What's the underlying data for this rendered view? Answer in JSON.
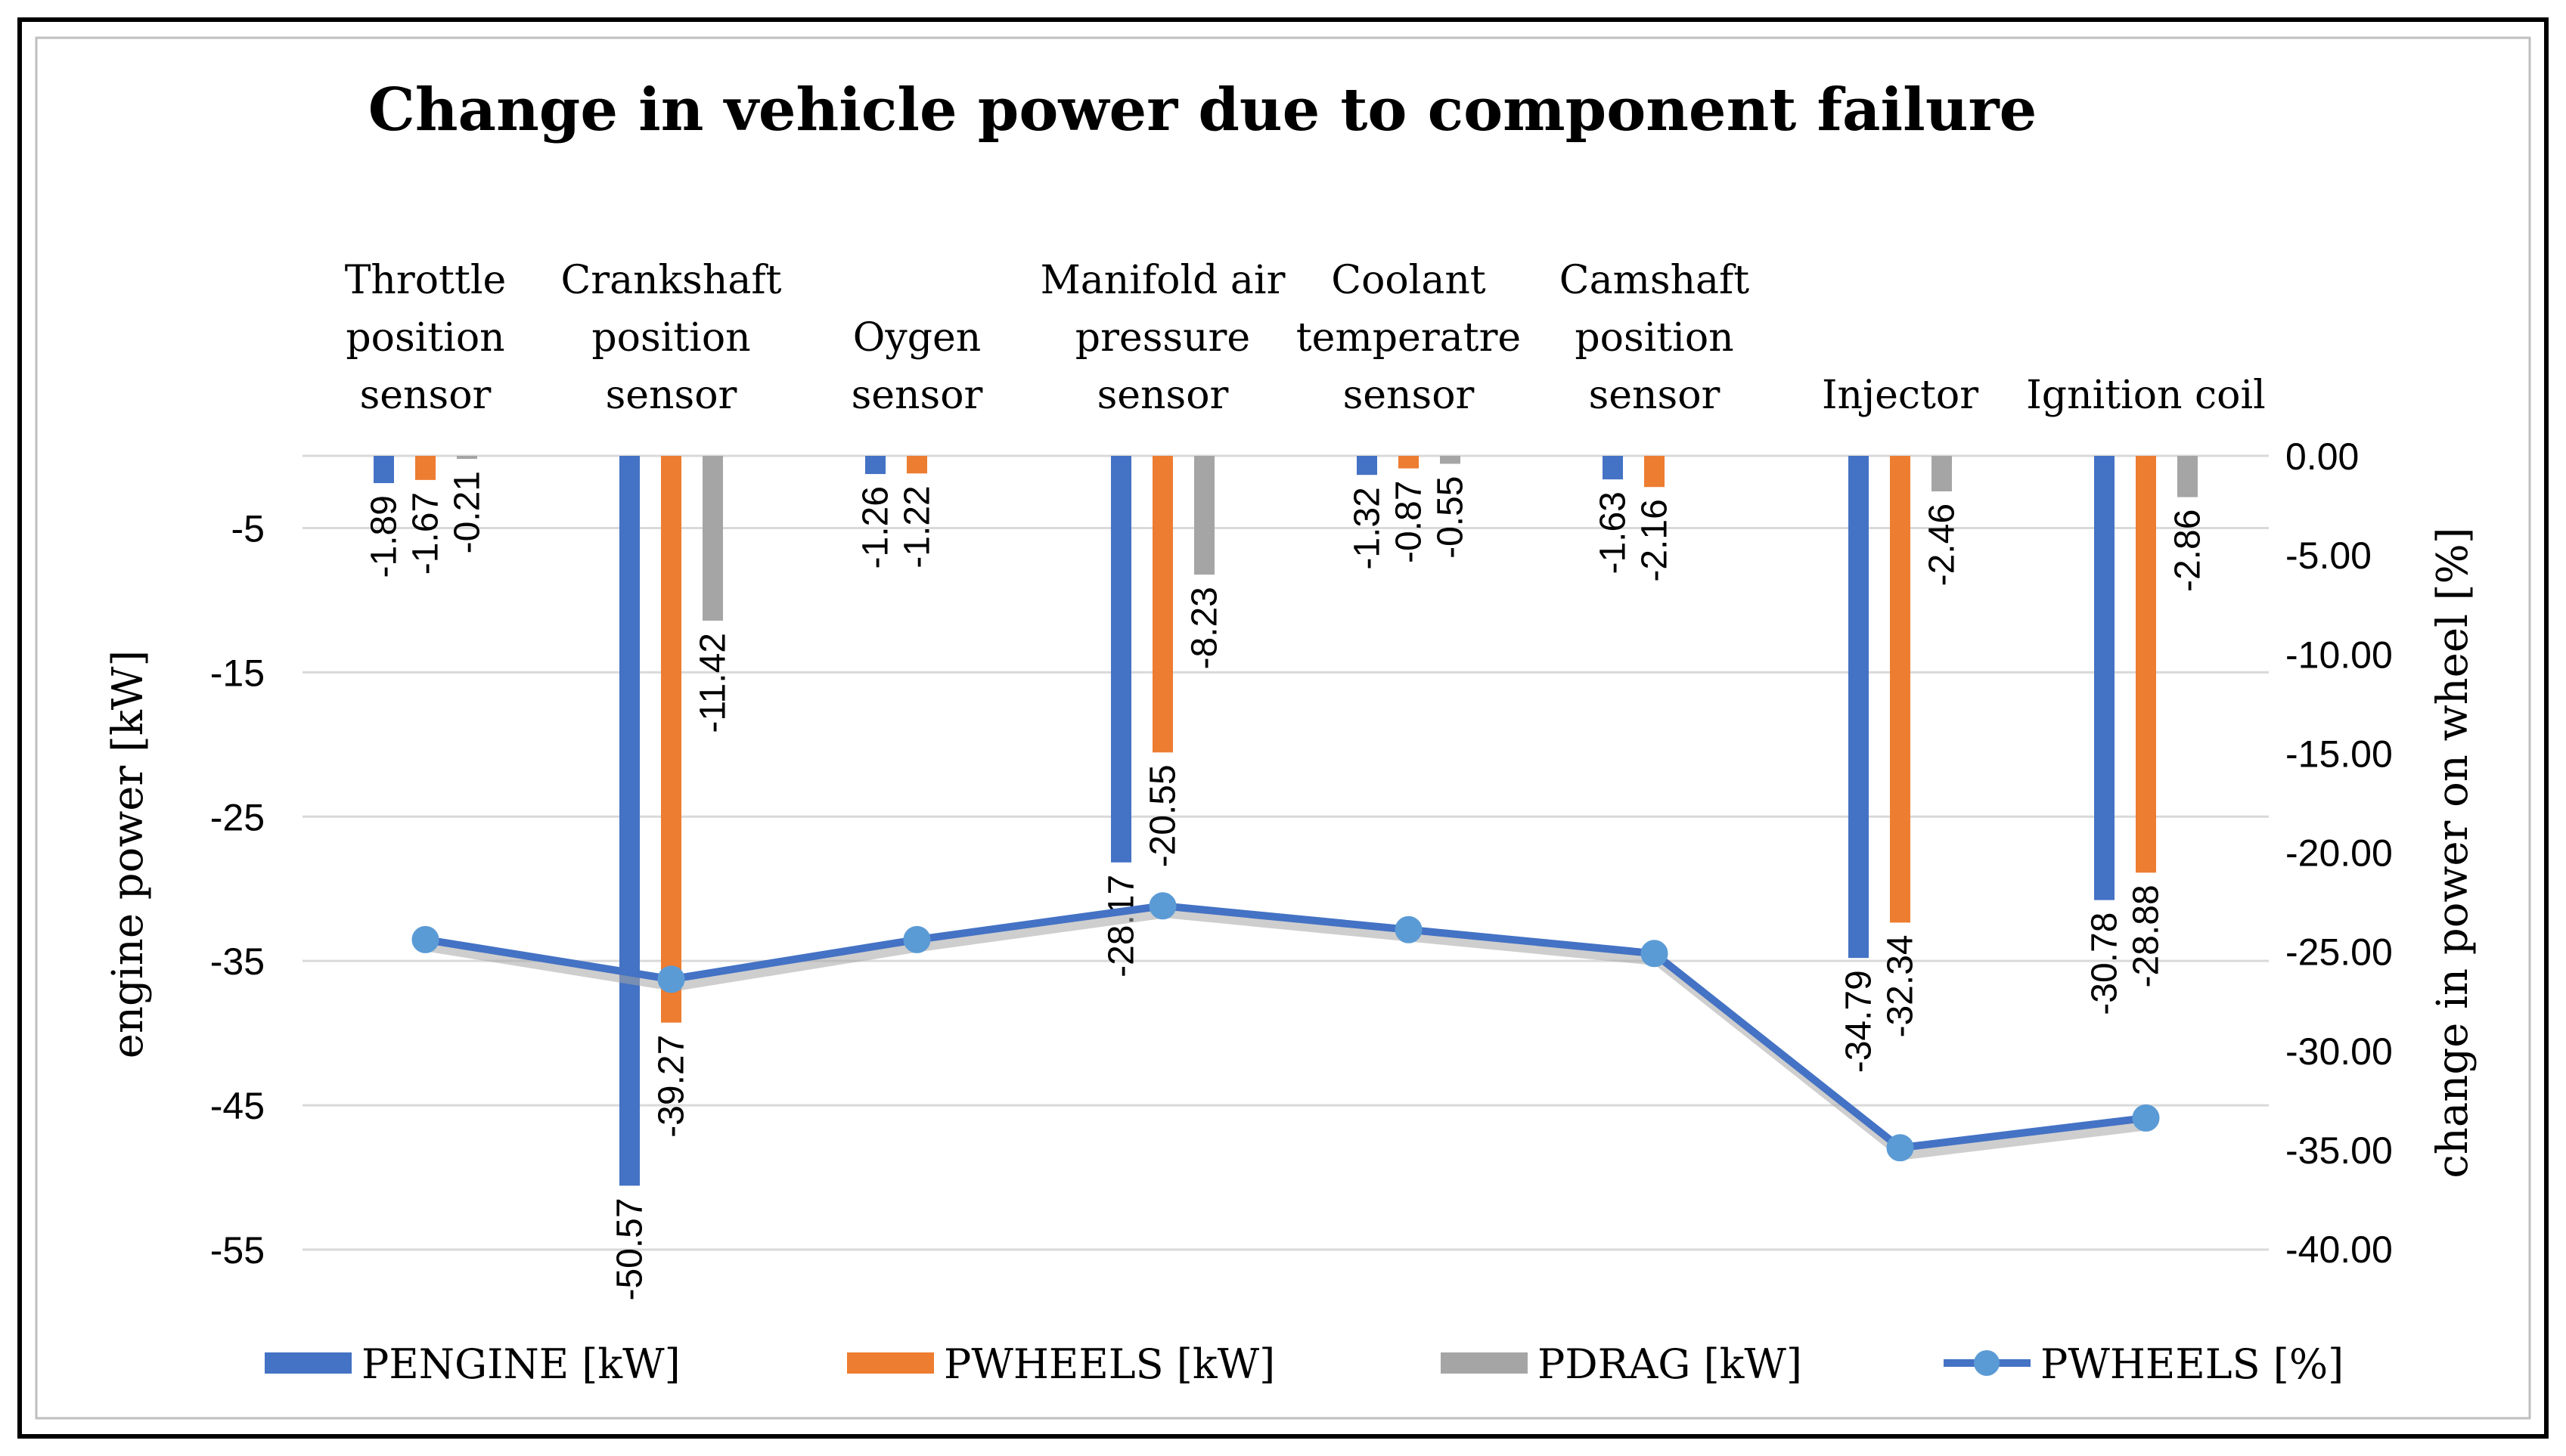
{
  "chart_data": {
    "type": "bar",
    "title": "Change in vehicle power due to component failure",
    "categories": [
      [
        "Throttle",
        "position",
        "sensor"
      ],
      [
        "Crankshaft",
        "position",
        "sensor"
      ],
      [
        "Oygen",
        "sensor"
      ],
      [
        "Manifold air",
        "pressure",
        "sensor"
      ],
      [
        "Coolant",
        "temperatre",
        "sensor"
      ],
      [
        "Camshaft",
        "position",
        "sensor"
      ],
      [
        "Injector"
      ],
      [
        "Ignition coil"
      ]
    ],
    "ylabel": "engine power [kW]",
    "y2label": "change in power on wheel [%]",
    "ylim": [
      -55,
      0
    ],
    "yticks": [
      -5,
      -15,
      -25,
      -35,
      -45,
      -55
    ],
    "y2lim": [
      -40,
      0
    ],
    "y2ticks": [
      "0.00",
      "-5.00",
      "-10.00",
      "-15.00",
      "-20.00",
      "-25.00",
      "-30.00",
      "-35.00",
      "-40.00"
    ],
    "series": [
      {
        "name": "PENGINE [kW]",
        "color": "#4472C4",
        "type": "bar",
        "values": [
          -1.89,
          null,
          -1.26,
          -28.17,
          -1.32,
          -1.63,
          -34.79,
          -30.78
        ],
        "labels": [
          "-1.89",
          "-50.57",
          "-1.26",
          "-28.17",
          "-1.32",
          "-1.63",
          "-34.79",
          "-30.78"
        ],
        "bar_values": [
          -1.89,
          -50.57,
          -1.26,
          -28.17,
          -1.32,
          -1.63,
          -34.79,
          -30.78
        ]
      },
      {
        "name": "PWHEELS [kW]",
        "color": "#ED7D31",
        "type": "bar",
        "bar_values": [
          -1.67,
          -39.27,
          -1.22,
          -20.55,
          -0.87,
          -2.16,
          -32.34,
          -28.88
        ],
        "labels": [
          "-1.67",
          "-39.27",
          "-1.22",
          "-20.55",
          "-0.87",
          "-2.16",
          "-32.34",
          "-28.88"
        ]
      },
      {
        "name": "PDRAG [kW]",
        "color": "#A5A5A5",
        "type": "bar",
        "bar_values": [
          -0.21,
          -11.42,
          0,
          -8.23,
          -0.55,
          0,
          -2.46,
          -2.86
        ],
        "labels": [
          "-0.21",
          "-11.42",
          "",
          "-8.23",
          "-0.55",
          "",
          "-2.46",
          "-2.86"
        ]
      },
      {
        "name": "PWHEELS [%]",
        "color": "#4472C4",
        "type": "line",
        "axis": "secondary",
        "values": [
          -24.4,
          -26.4,
          -24.4,
          -22.7,
          -23.9,
          -25.1,
          -34.9,
          -33.4
        ]
      }
    ],
    "legend": [
      "PENGINE [kW]",
      "PWHEELS [kW]",
      "PDRAG [kW]",
      "PWHEELS [%]"
    ],
    "legend_position": "bottom",
    "grid": true
  }
}
